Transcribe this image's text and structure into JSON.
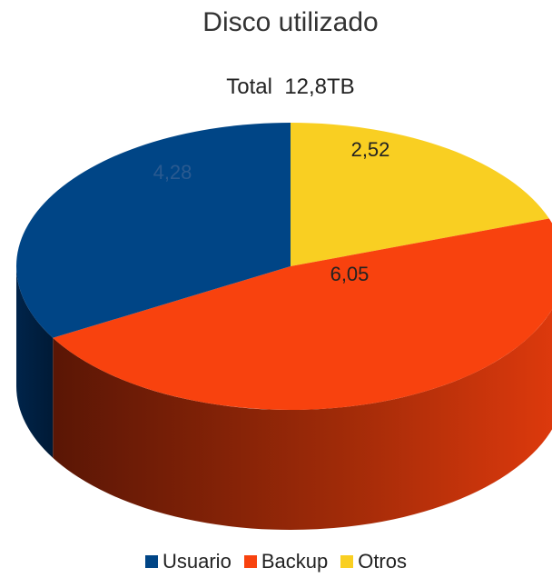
{
  "chart_data": {
    "type": "pie",
    "title": "Disco utilizado",
    "subtitle": "Total  12,8TB",
    "legend_position": "bottom",
    "slices": [
      {
        "name": "Otros",
        "value": 2.52,
        "label": "2,52",
        "color": "#f9cf22"
      },
      {
        "name": "Backup",
        "value": 6.05,
        "label": "6,05",
        "color": "#f8420e"
      },
      {
        "name": "Usuario",
        "value": 4.28,
        "label": "4,28",
        "color": "#004586"
      }
    ]
  },
  "legend": [
    {
      "label": "Usuario",
      "color": "#004586"
    },
    {
      "label": "Backup",
      "color": "#f8420e"
    },
    {
      "label": "Otros",
      "color": "#f9cf22"
    }
  ]
}
